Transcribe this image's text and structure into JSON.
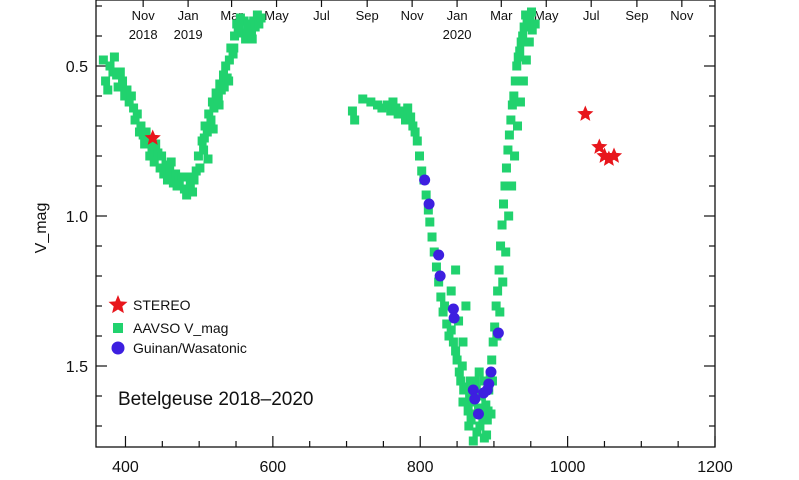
{
  "chart_data": {
    "type": "scatter",
    "title": "",
    "annotation": "Betelgeuse 2018–2020",
    "xlabel": "",
    "ylabel": "V_mag",
    "xlim": [
      360,
      1200
    ],
    "ylim": [
      1.77,
      0.28
    ],
    "y_inverted": true,
    "grid": false,
    "legend_placement": "left",
    "xticks": [
      400,
      600,
      800,
      1000,
      1200
    ],
    "yticks": [
      0.5,
      1.0,
      1.5
    ],
    "ytick_labels": [
      "0.5",
      "1.0",
      "1.5"
    ],
    "top_axis": {
      "labels": [
        {
          "x": 424,
          "month": "Nov",
          "year": "2018"
        },
        {
          "x": 485,
          "month": "Jan",
          "year": "2019"
        },
        {
          "x": 544,
          "month": "Mar",
          "year": ""
        },
        {
          "x": 605,
          "month": "May",
          "year": ""
        },
        {
          "x": 666,
          "month": "Jul",
          "year": ""
        },
        {
          "x": 728,
          "month": "Sep",
          "year": ""
        },
        {
          "x": 789,
          "month": "Nov",
          "year": ""
        },
        {
          "x": 850,
          "month": "Jan",
          "year": "2020"
        },
        {
          "x": 910,
          "month": "Mar",
          "year": ""
        },
        {
          "x": 971,
          "month": "May",
          "year": ""
        },
        {
          "x": 1032,
          "month": "Jul",
          "year": ""
        },
        {
          "x": 1094,
          "month": "Sep",
          "year": ""
        },
        {
          "x": 1155,
          "month": "Nov",
          "year": ""
        }
      ]
    },
    "series": [
      {
        "name": "STEREO",
        "marker": "star",
        "color": "#e8161c",
        "points": [
          [
            437,
            0.74
          ],
          [
            1024,
            0.66
          ],
          [
            1043,
            0.77
          ],
          [
            1050,
            0.8
          ],
          [
            1056,
            0.81
          ],
          [
            1063,
            0.8
          ]
        ]
      },
      {
        "name": "AAVSO V_mag",
        "marker": "square",
        "color": "#21d26e",
        "points": [
          [
            370,
            0.48
          ],
          [
            373,
            0.55
          ],
          [
            376,
            0.58
          ],
          [
            379,
            0.5
          ],
          [
            383,
            0.52
          ],
          [
            385,
            0.47
          ],
          [
            388,
            0.53
          ],
          [
            390,
            0.57
          ],
          [
            393,
            0.52
          ],
          [
            396,
            0.55
          ],
          [
            399,
            0.6
          ],
          [
            402,
            0.58
          ],
          [
            405,
            0.62
          ],
          [
            408,
            0.6
          ],
          [
            411,
            0.64
          ],
          [
            413,
            0.68
          ],
          [
            416,
            0.66
          ],
          [
            419,
            0.72
          ],
          [
            421,
            0.7
          ],
          [
            424,
            0.73
          ],
          [
            426,
            0.76
          ],
          [
            428,
            0.72
          ],
          [
            431,
            0.75
          ],
          [
            433,
            0.8
          ],
          [
            436,
            0.78
          ],
          [
            439,
            0.82
          ],
          [
            441,
            0.76
          ],
          [
            444,
            0.79
          ],
          [
            447,
            0.84
          ],
          [
            449,
            0.8
          ],
          [
            452,
            0.86
          ],
          [
            455,
            0.83
          ],
          [
            457,
            0.88
          ],
          [
            460,
            0.85
          ],
          [
            462,
            0.82
          ],
          [
            465,
            0.89
          ],
          [
            468,
            0.86
          ],
          [
            470,
            0.9
          ],
          [
            473,
            0.88
          ],
          [
            477,
            0.87
          ],
          [
            480,
            0.91
          ],
          [
            483,
            0.93
          ],
          [
            486,
            0.87
          ],
          [
            488,
            0.9
          ],
          [
            491,
            0.92
          ],
          [
            493,
            0.88
          ],
          [
            496,
            0.85
          ],
          [
            499,
            0.8
          ],
          [
            501,
            0.84
          ],
          [
            504,
            0.75
          ],
          [
            506,
            0.78
          ],
          [
            508,
            0.7
          ],
          [
            511,
            0.72
          ],
          [
            513,
            0.66
          ],
          [
            516,
            0.68
          ],
          [
            518,
            0.62
          ],
          [
            520,
            0.64
          ],
          [
            523,
            0.59
          ],
          [
            526,
            0.61
          ],
          [
            528,
            0.56
          ],
          [
            530,
            0.58
          ],
          [
            533,
            0.53
          ],
          [
            536,
            0.5
          ],
          [
            538,
            0.54
          ],
          [
            541,
            0.48
          ],
          [
            543,
            0.44
          ],
          [
            546,
            0.46
          ],
          [
            548,
            0.4
          ],
          [
            551,
            0.36
          ],
          [
            553,
            0.38
          ],
          [
            556,
            0.34
          ],
          [
            558,
            0.39
          ],
          [
            561,
            0.35
          ],
          [
            563,
            0.41
          ],
          [
            566,
            0.36
          ],
          [
            568,
            0.4
          ],
          [
            571,
            0.38
          ],
          [
            574,
            0.35
          ],
          [
            576,
            0.37
          ],
          [
            579,
            0.33
          ],
          [
            581,
            0.36
          ],
          [
            584,
            0.34
          ],
          [
            507,
            0.74
          ],
          [
            512,
            0.81
          ],
          [
            519,
            0.71
          ],
          [
            527,
            0.63
          ],
          [
            534,
            0.57
          ],
          [
            540,
            0.55
          ],
          [
            547,
            0.44
          ],
          [
            554,
            0.37
          ],
          [
            565,
            0.39
          ],
          [
            572,
            0.41
          ],
          [
            708,
            0.65
          ],
          [
            711,
            0.68
          ],
          [
            722,
            0.61
          ],
          [
            733,
            0.62
          ],
          [
            742,
            0.63
          ],
          [
            748,
            0.64
          ],
          [
            755,
            0.63
          ],
          [
            760,
            0.65
          ],
          [
            763,
            0.62
          ],
          [
            767,
            0.64
          ],
          [
            770,
            0.66
          ],
          [
            774,
            0.65
          ],
          [
            777,
            0.66
          ],
          [
            780,
            0.68
          ],
          [
            783,
            0.64
          ],
          [
            787,
            0.67
          ],
          [
            790,
            0.7
          ],
          [
            793,
            0.72
          ],
          [
            796,
            0.75
          ],
          [
            799,
            0.8
          ],
          [
            802,
            0.85
          ],
          [
            805,
            0.88
          ],
          [
            808,
            0.93
          ],
          [
            811,
            0.98
          ],
          [
            813,
            1.02
          ],
          [
            816,
            1.07
          ],
          [
            819,
            1.12
          ],
          [
            822,
            1.17
          ],
          [
            825,
            1.22
          ],
          [
            828,
            1.27
          ],
          [
            831,
            1.32
          ],
          [
            833,
            1.3
          ],
          [
            836,
            1.36
          ],
          [
            839,
            1.4
          ],
          [
            842,
            1.38
          ],
          [
            845,
            1.42
          ],
          [
            848,
            1.45
          ],
          [
            850,
            1.48
          ],
          [
            853,
            1.52
          ],
          [
            855,
            1.55
          ],
          [
            857,
            1.5
          ],
          [
            859,
            1.58
          ],
          [
            861,
            1.62
          ],
          [
            863,
            1.57
          ],
          [
            865,
            1.65
          ],
          [
            867,
            1.6
          ],
          [
            869,
            1.68
          ],
          [
            871,
            1.62
          ],
          [
            873,
            1.58
          ],
          [
            875,
            1.66
          ],
          [
            877,
            1.72
          ],
          [
            879,
            1.64
          ],
          [
            881,
            1.7
          ],
          [
            883,
            1.6
          ],
          [
            885,
            1.67
          ],
          [
            887,
            1.74
          ],
          [
            889,
            1.63
          ],
          [
            891,
            1.68
          ],
          [
            893,
            1.58
          ],
          [
            895,
            1.54
          ],
          [
            897,
            1.48
          ],
          [
            899,
            1.42
          ],
          [
            901,
            1.37
          ],
          [
            903,
            1.3
          ],
          [
            905,
            1.25
          ],
          [
            907,
            1.18
          ],
          [
            909,
            1.1
          ],
          [
            911,
            1.03
          ],
          [
            913,
            0.96
          ],
          [
            915,
            0.9
          ],
          [
            917,
            0.84
          ],
          [
            919,
            0.78
          ],
          [
            921,
            0.73
          ],
          [
            923,
            0.68
          ],
          [
            925,
            0.63
          ],
          [
            927,
            0.6
          ],
          [
            929,
            0.55
          ],
          [
            931,
            0.5
          ],
          [
            933,
            0.47
          ],
          [
            935,
            0.45
          ],
          [
            937,
            0.42
          ],
          [
            939,
            0.4
          ],
          [
            941,
            0.37
          ],
          [
            943,
            0.33
          ],
          [
            945,
            0.34
          ],
          [
            947,
            0.35
          ],
          [
            949,
            0.33
          ],
          [
            951,
            0.32
          ],
          [
            842,
            1.25
          ],
          [
            848,
            1.18
          ],
          [
            852,
            1.35
          ],
          [
            858,
            1.42
          ],
          [
            862,
            1.3
          ],
          [
            868,
            1.55
          ],
          [
            872,
            1.75
          ],
          [
            876,
            1.58
          ],
          [
            880,
            1.52
          ],
          [
            886,
            1.55
          ],
          [
            892,
            1.65
          ],
          [
            898,
            1.55
          ],
          [
            904,
            1.4
          ],
          [
            908,
            1.32
          ],
          [
            912,
            1.22
          ],
          [
            916,
            1.12
          ],
          [
            920,
            1.0
          ],
          [
            924,
            0.9
          ],
          [
            928,
            0.8
          ],
          [
            932,
            0.7
          ],
          [
            936,
            0.62
          ],
          [
            940,
            0.55
          ],
          [
            944,
            0.48
          ],
          [
            948,
            0.42
          ],
          [
            952,
            0.38
          ],
          [
            956,
            0.36
          ],
          [
            858,
            1.62
          ],
          [
            866,
            1.7
          ],
          [
            874,
            1.55
          ],
          [
            882,
            1.66
          ],
          [
            890,
            1.73
          ],
          [
            896,
            1.66
          ]
        ]
      },
      {
        "name": "Guinan/Wasatonic",
        "marker": "circle",
        "color": "#3d1fe0",
        "points": [
          [
            806,
            0.88
          ],
          [
            812,
            0.96
          ],
          [
            825,
            1.13
          ],
          [
            827,
            1.2
          ],
          [
            845,
            1.31
          ],
          [
            846,
            1.34
          ],
          [
            872,
            1.58
          ],
          [
            874,
            1.61
          ],
          [
            879,
            1.66
          ],
          [
            886,
            1.59
          ],
          [
            891,
            1.58
          ],
          [
            893,
            1.56
          ],
          [
            896,
            1.52
          ],
          [
            906,
            1.39
          ]
        ]
      }
    ]
  }
}
